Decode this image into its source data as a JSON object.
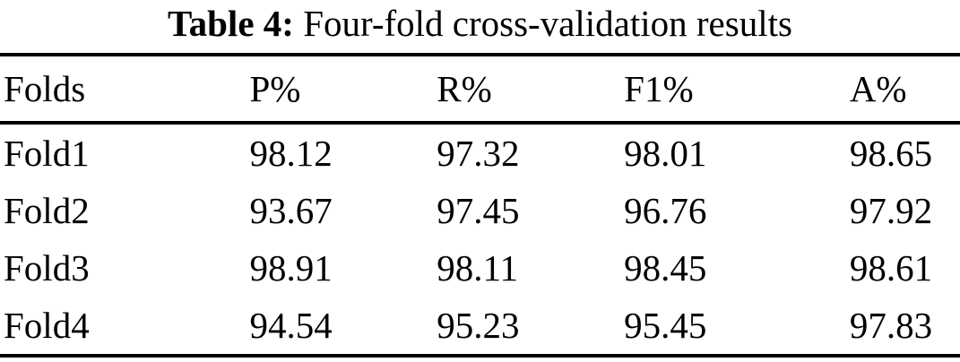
{
  "title": {
    "label": "Table 4:",
    "caption": "Four-fold cross-validation results"
  },
  "table": {
    "columns": [
      "Folds",
      "P%",
      "R%",
      "F1%",
      "A%"
    ],
    "rows": [
      [
        "Fold1",
        "98.12",
        "97.32",
        "98.01",
        "98.65"
      ],
      [
        "Fold2",
        "93.67",
        "97.45",
        "96.76",
        "97.92"
      ],
      [
        "Fold3",
        "98.91",
        "98.11",
        "98.45",
        "98.61"
      ],
      [
        "Fold4",
        "94.54",
        "95.23",
        "95.45",
        "97.83"
      ]
    ]
  }
}
